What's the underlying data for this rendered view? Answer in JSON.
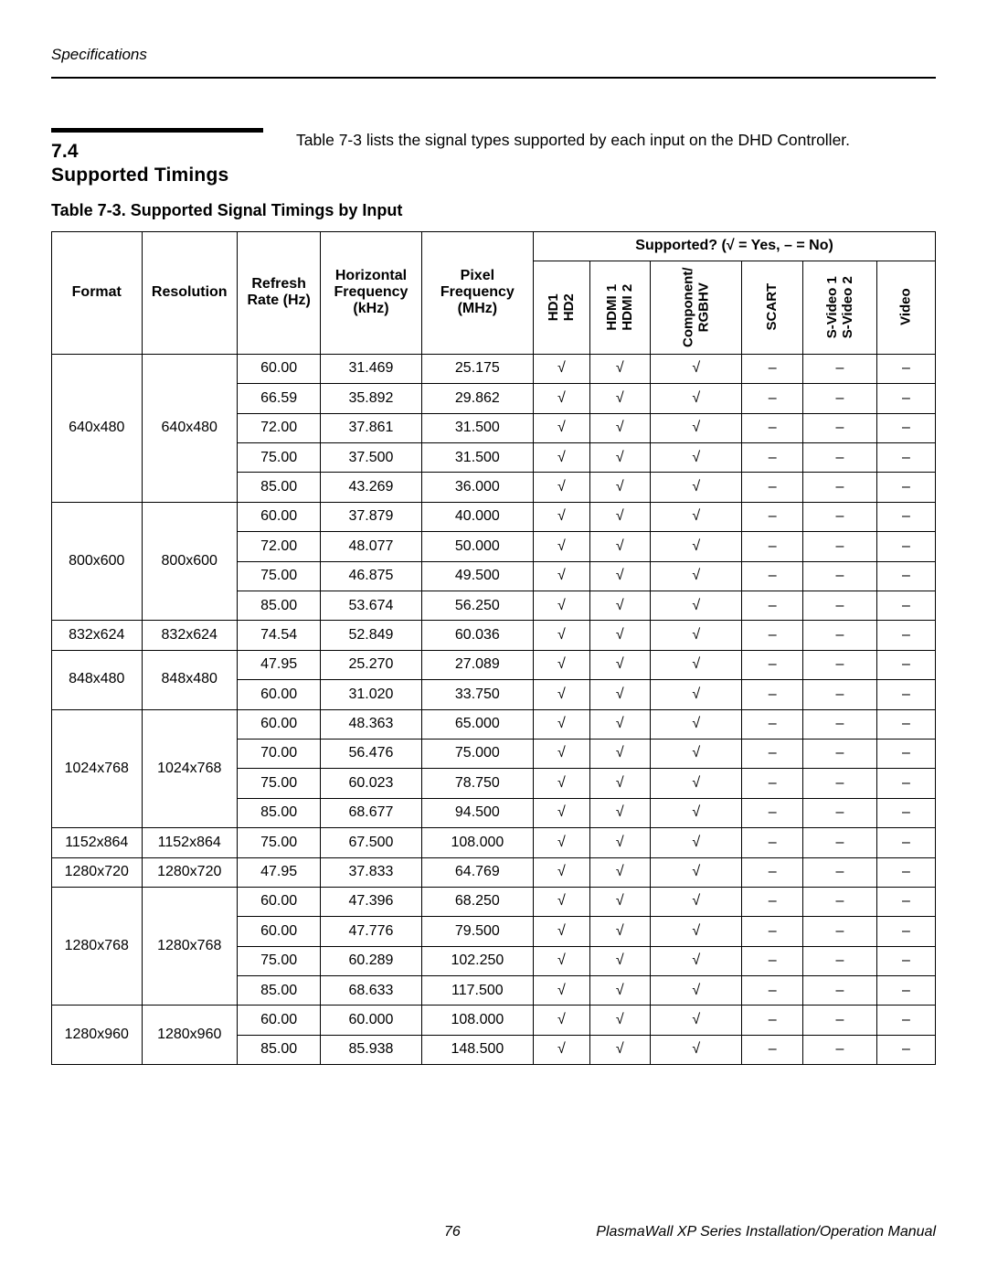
{
  "header_text": "Specifications",
  "section_number": "7.4",
  "section_title": "Supported Timings",
  "intro_text": "Table 7-3 lists the signal types supported by each input on the DHD Controller.",
  "table_caption": "Table 7-3. Supported Signal Timings by Input",
  "supported_header": "Supported? (√ = Yes, – = No)",
  "col_format": "Format",
  "col_resolution": "Resolution",
  "col_refresh": "Refresh Rate (Hz)",
  "col_hfreq": "Horizontal Frequency (kHz)",
  "col_pfreq": "Pixel Frequency (MHz)",
  "vcol1a": "HD1",
  "vcol1b": "HD2",
  "vcol2a": "HDMI 1",
  "vcol2b": "HDMI 2",
  "vcol3a": "Component/",
  "vcol3b": "RGBHV",
  "vcol4": "SCART",
  "vcol5a": "S-Video 1",
  "vcol5b": "S-Video 2",
  "vcol6": "Video",
  "yes": "√",
  "no": "–",
  "groups": [
    {
      "format": "640x480",
      "resolution": "640x480",
      "rows": [
        {
          "r": "60.00",
          "h": "31.469",
          "p": "25.175",
          "s": [
            "y",
            "y",
            "y",
            "n",
            "n",
            "n"
          ]
        },
        {
          "r": "66.59",
          "h": "35.892",
          "p": "29.862",
          "s": [
            "y",
            "y",
            "y",
            "n",
            "n",
            "n"
          ]
        },
        {
          "r": "72.00",
          "h": "37.861",
          "p": "31.500",
          "s": [
            "y",
            "y",
            "y",
            "n",
            "n",
            "n"
          ]
        },
        {
          "r": "75.00",
          "h": "37.500",
          "p": "31.500",
          "s": [
            "y",
            "y",
            "y",
            "n",
            "n",
            "n"
          ]
        },
        {
          "r": "85.00",
          "h": "43.269",
          "p": "36.000",
          "s": [
            "y",
            "y",
            "y",
            "n",
            "n",
            "n"
          ]
        }
      ]
    },
    {
      "format": "800x600",
      "resolution": "800x600",
      "rows": [
        {
          "r": "60.00",
          "h": "37.879",
          "p": "40.000",
          "s": [
            "y",
            "y",
            "y",
            "n",
            "n",
            "n"
          ]
        },
        {
          "r": "72.00",
          "h": "48.077",
          "p": "50.000",
          "s": [
            "y",
            "y",
            "y",
            "n",
            "n",
            "n"
          ]
        },
        {
          "r": "75.00",
          "h": "46.875",
          "p": "49.500",
          "s": [
            "y",
            "y",
            "y",
            "n",
            "n",
            "n"
          ]
        },
        {
          "r": "85.00",
          "h": "53.674",
          "p": "56.250",
          "s": [
            "y",
            "y",
            "y",
            "n",
            "n",
            "n"
          ]
        }
      ]
    },
    {
      "format": "832x624",
      "resolution": "832x624",
      "rows": [
        {
          "r": "74.54",
          "h": "52.849",
          "p": "60.036",
          "s": [
            "y",
            "y",
            "y",
            "n",
            "n",
            "n"
          ]
        }
      ]
    },
    {
      "format": "848x480",
      "resolution": "848x480",
      "rows": [
        {
          "r": "47.95",
          "h": "25.270",
          "p": "27.089",
          "s": [
            "y",
            "y",
            "y",
            "n",
            "n",
            "n"
          ]
        },
        {
          "r": "60.00",
          "h": "31.020",
          "p": "33.750",
          "s": [
            "y",
            "y",
            "y",
            "n",
            "n",
            "n"
          ]
        }
      ]
    },
    {
      "format": "1024x768",
      "resolution": "1024x768",
      "rows": [
        {
          "r": "60.00",
          "h": "48.363",
          "p": "65.000",
          "s": [
            "y",
            "y",
            "y",
            "n",
            "n",
            "n"
          ]
        },
        {
          "r": "70.00",
          "h": "56.476",
          "p": "75.000",
          "s": [
            "y",
            "y",
            "y",
            "n",
            "n",
            "n"
          ]
        },
        {
          "r": "75.00",
          "h": "60.023",
          "p": "78.750",
          "s": [
            "y",
            "y",
            "y",
            "n",
            "n",
            "n"
          ]
        },
        {
          "r": "85.00",
          "h": "68.677",
          "p": "94.500",
          "s": [
            "y",
            "y",
            "y",
            "n",
            "n",
            "n"
          ]
        }
      ]
    },
    {
      "format": "1152x864",
      "resolution": "1152x864",
      "rows": [
        {
          "r": "75.00",
          "h": "67.500",
          "p": "108.000",
          "s": [
            "y",
            "y",
            "y",
            "n",
            "n",
            "n"
          ]
        }
      ]
    },
    {
      "format": "1280x720",
      "resolution": "1280x720",
      "rows": [
        {
          "r": "47.95",
          "h": "37.833",
          "p": "64.769",
          "s": [
            "y",
            "y",
            "y",
            "n",
            "n",
            "n"
          ]
        }
      ]
    },
    {
      "format": "1280x768",
      "resolution": "1280x768",
      "rows": [
        {
          "r": "60.00",
          "h": "47.396",
          "p": "68.250",
          "s": [
            "y",
            "y",
            "y",
            "n",
            "n",
            "n"
          ]
        },
        {
          "r": "60.00",
          "h": "47.776",
          "p": "79.500",
          "s": [
            "y",
            "y",
            "y",
            "n",
            "n",
            "n"
          ]
        },
        {
          "r": "75.00",
          "h": "60.289",
          "p": "102.250",
          "s": [
            "y",
            "y",
            "y",
            "n",
            "n",
            "n"
          ]
        },
        {
          "r": "85.00",
          "h": "68.633",
          "p": "117.500",
          "s": [
            "y",
            "y",
            "y",
            "n",
            "n",
            "n"
          ]
        }
      ]
    },
    {
      "format": "1280x960",
      "resolution": "1280x960",
      "rows": [
        {
          "r": "60.00",
          "h": "60.000",
          "p": "108.000",
          "s": [
            "y",
            "y",
            "y",
            "n",
            "n",
            "n"
          ]
        },
        {
          "r": "85.00",
          "h": "85.938",
          "p": "148.500",
          "s": [
            "y",
            "y",
            "y",
            "n",
            "n",
            "n"
          ]
        }
      ]
    }
  ],
  "page_number": "76",
  "footer_text": "PlasmaWall XP Series Installation/Operation Manual"
}
